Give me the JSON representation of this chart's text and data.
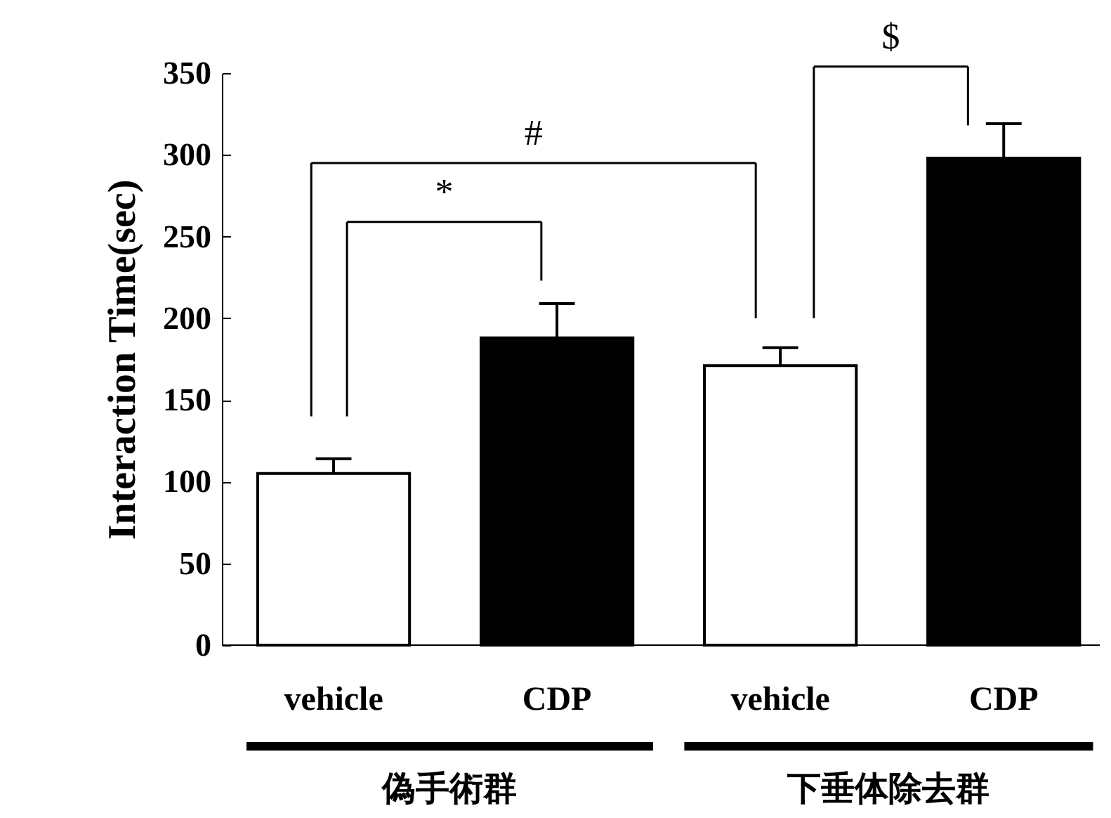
{
  "chart_data": {
    "type": "bar",
    "ylabel": "Interaction Time(sec)",
    "categories": [
      "vehicle",
      "CDP",
      "vehicle",
      "CDP"
    ],
    "values": [
      105,
      188,
      171,
      298
    ],
    "colors": [
      "#ffffff",
      "#000000",
      "#ffffff",
      "#000000"
    ],
    "errors": [
      [
        105,
        114
      ],
      [
        188,
        209
      ],
      [
        171,
        182
      ],
      [
        298,
        319
      ]
    ],
    "ylim": [
      0,
      350
    ],
    "yticks": [
      0,
      50,
      100,
      150,
      200,
      250,
      300,
      350
    ],
    "annotations": [
      "*",
      "#",
      "$",
      "偽手術群",
      "下垂体除去群"
    ]
  }
}
